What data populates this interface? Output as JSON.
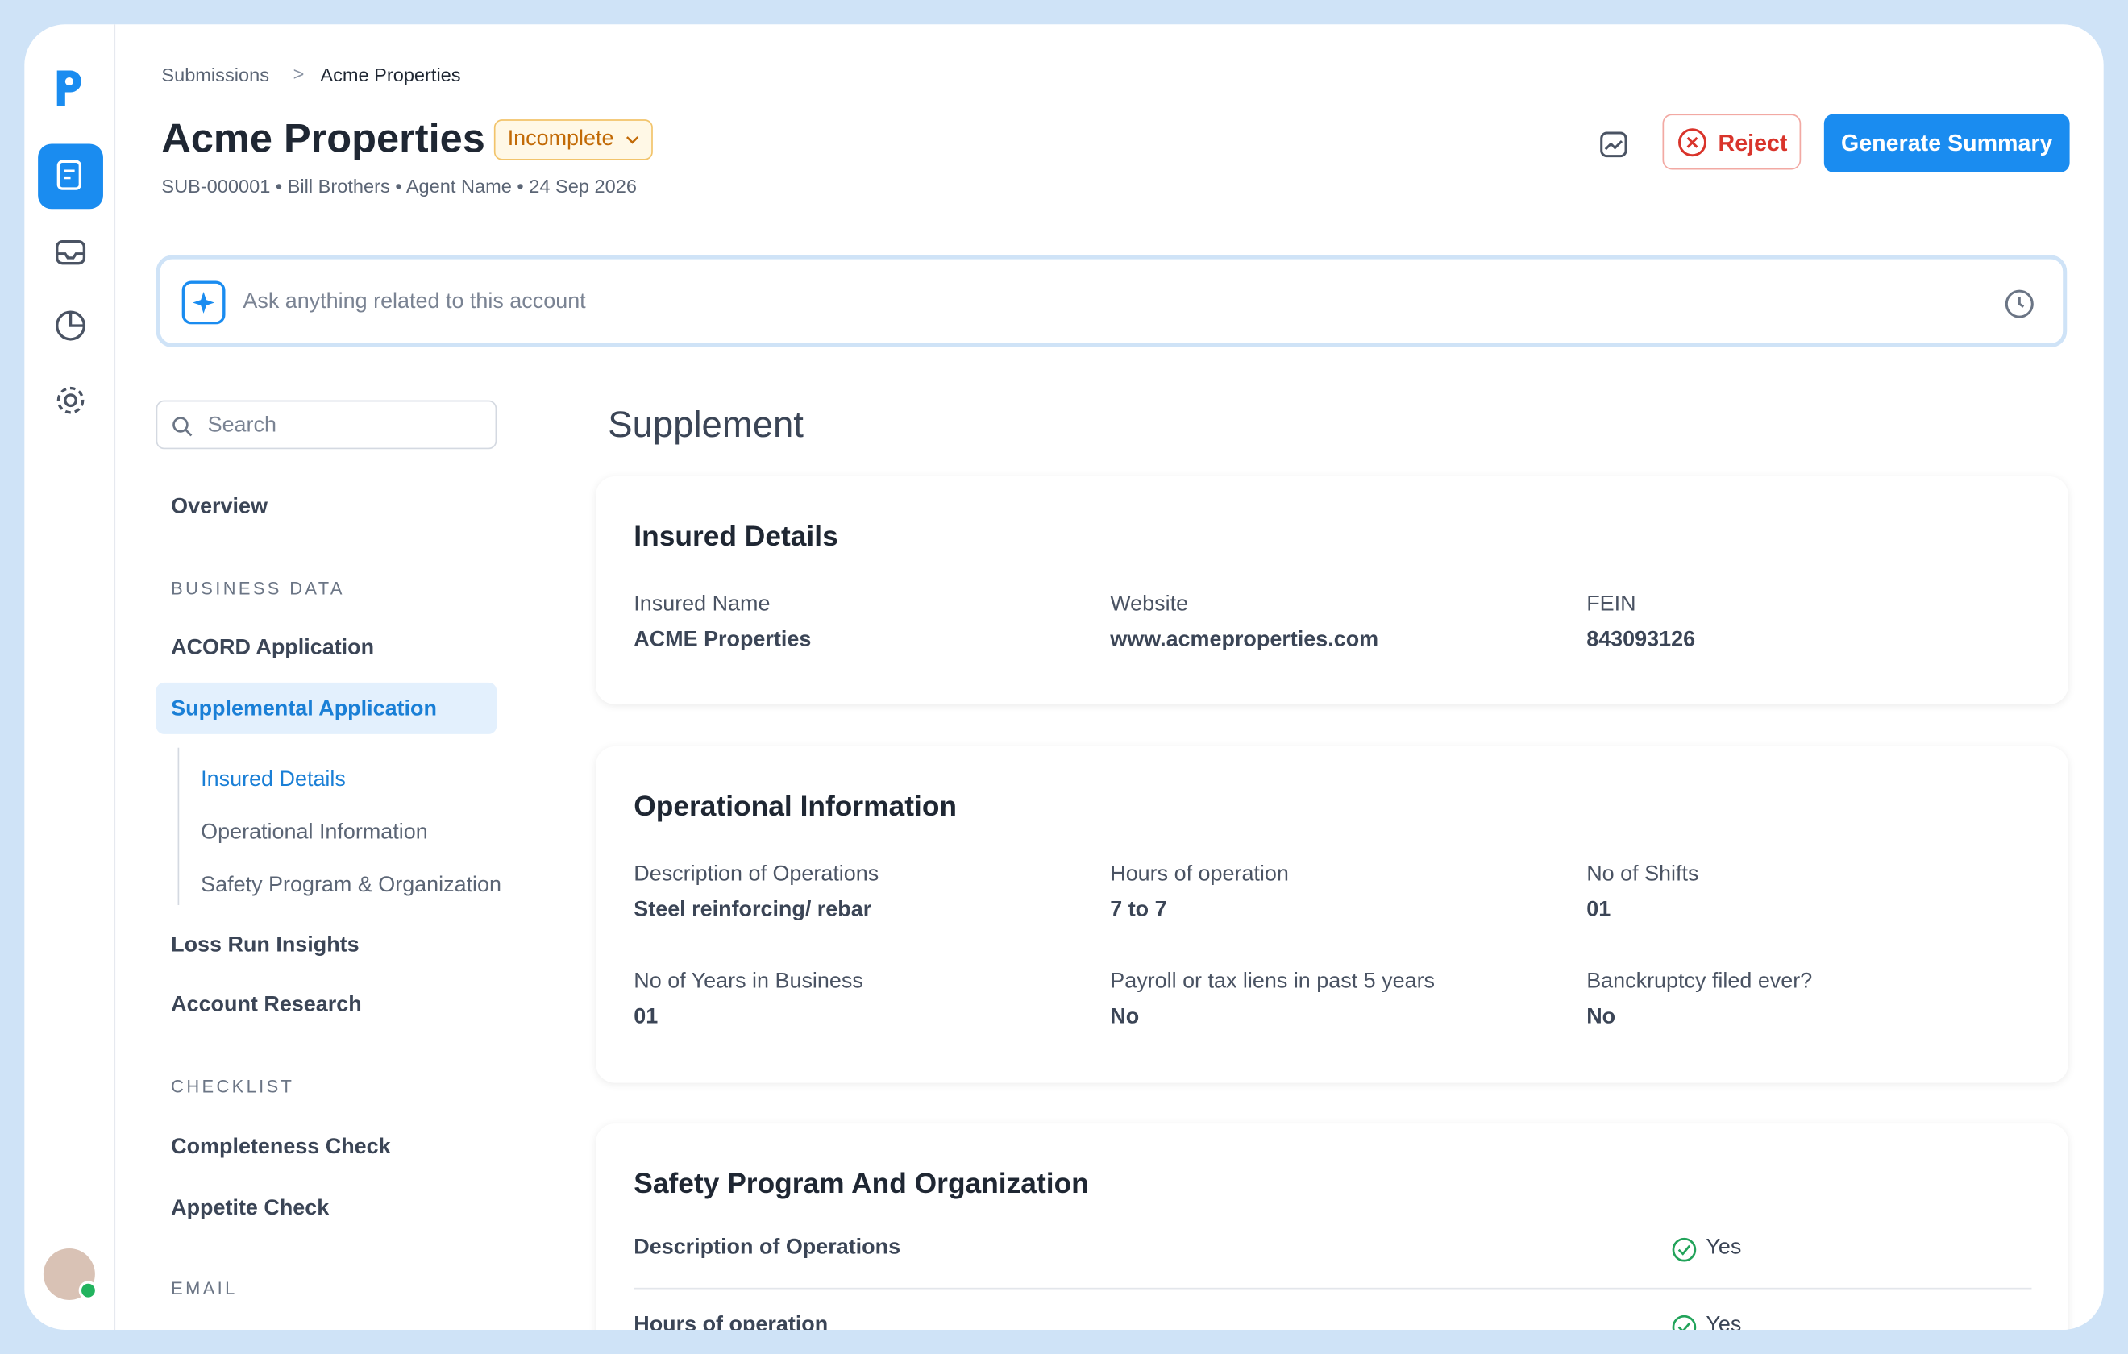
{
  "breadcrumb": [
    "Submissions",
    "Acme Properties"
  ],
  "header": {
    "title": "Acme Properties",
    "status": "Incomplete",
    "meta": [
      "SUB-000001",
      "Bill Brothers",
      "Agent Name",
      "24 Sep 2026"
    ],
    "reject": "Reject",
    "generate": "Generate Summary"
  },
  "ask": {
    "placeholder": "Ask anything related to this account"
  },
  "sidebar": {
    "search": "Search",
    "overview": "Overview",
    "groups": [
      {
        "label": "BUSINESS DATA",
        "items": [
          "ACORD Application",
          "Supplemental Application",
          "Loss Run Insights",
          "Account Research"
        ],
        "subitems": [
          "Insured Details",
          "Operational Information",
          "Safety Program & Organization"
        ]
      },
      {
        "label": "CHECKLIST",
        "items": [
          "Completeness Check",
          "Appetite Check"
        ]
      },
      {
        "label": "EMAIL",
        "items": []
      }
    ]
  },
  "main": {
    "heading": "Supplement",
    "sections": [
      {
        "title": "Insured Details",
        "fields": [
          {
            "label": "Insured Name",
            "value": "ACME Properties"
          },
          {
            "label": "Website",
            "value": "www.acmeproperties.com"
          },
          {
            "label": "FEIN",
            "value": "843093126"
          }
        ]
      },
      {
        "title": "Operational Information",
        "fields": [
          {
            "label": "Description of Operations",
            "value": "Steel reinforcing/ rebar"
          },
          {
            "label": "Hours of operation",
            "value": "7 to 7"
          },
          {
            "label": "No of Shifts",
            "value": "01"
          },
          {
            "label": "No of Years in Business",
            "value": "01"
          },
          {
            "label": "Payroll or tax liens in past 5 years",
            "value": "No"
          },
          {
            "label": "Banckruptcy filed ever?",
            "value": "No"
          }
        ]
      },
      {
        "title": "Safety Program And Organization",
        "rows": [
          {
            "label": "Description of Operations",
            "value": "Yes"
          },
          {
            "label": "Hours of operation",
            "value": "Yes"
          }
        ]
      }
    ]
  }
}
